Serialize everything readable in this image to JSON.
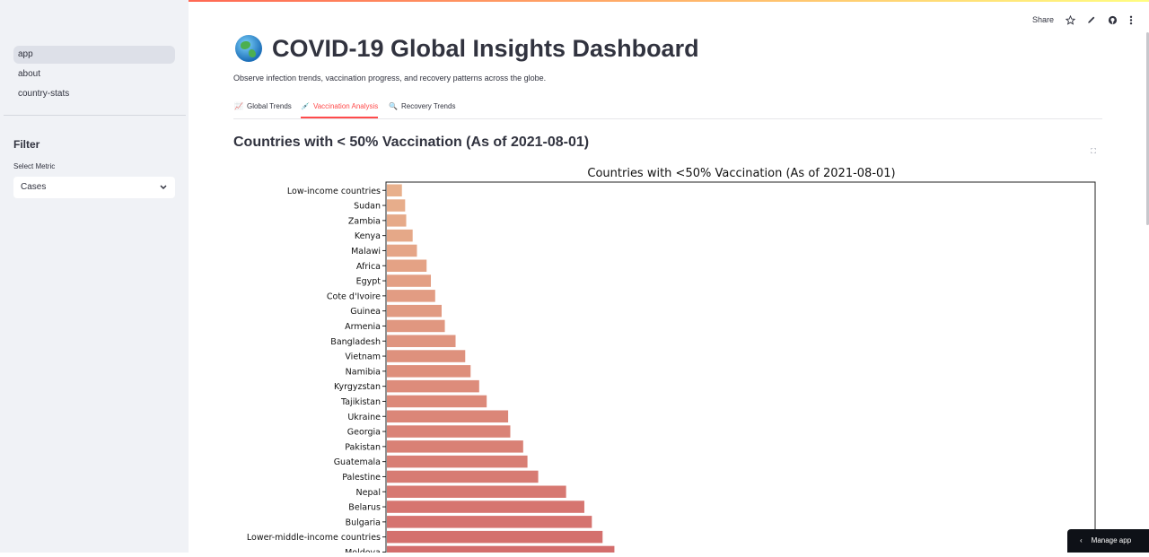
{
  "sidebar": {
    "nav": [
      {
        "label": "app",
        "active": true
      },
      {
        "label": "about",
        "active": false
      },
      {
        "label": "country-stats",
        "active": false
      }
    ],
    "filter_title": "Filter",
    "select_label": "Select Metric",
    "select_value": "Cases"
  },
  "toolbar": {
    "share_label": "Share"
  },
  "header": {
    "title": "COVID-19 Global Insights Dashboard",
    "subtitle": "Observe infection trends, vaccination progress, and recovery patterns across the globe."
  },
  "tabs": [
    {
      "label": "Global Trends",
      "icon": "📈",
      "active": false
    },
    {
      "label": "Vaccination Analysis",
      "icon": "💉",
      "active": true
    },
    {
      "label": "Recovery Trends",
      "icon": "🔍",
      "active": false
    }
  ],
  "section_title": "Countries with < 50% Vaccination (As of 2021-08-01)",
  "manage_label": "Manage app",
  "chart_data": {
    "type": "bar",
    "orientation": "horizontal",
    "title": "Countries with <50% Vaccination (As of 2021-08-01)",
    "categories": [
      "Low-income countries",
      "Sudan",
      "Zambia",
      "Kenya",
      "Malawi",
      "Africa",
      "Egypt",
      "Cote d'Ivoire",
      "Guinea",
      "Armenia",
      "Bangladesh",
      "Vietnam",
      "Namibia",
      "Kyrgyzstan",
      "Tajikistan",
      "Ukraine",
      "Georgia",
      "Pakistan",
      "Guatemala",
      "Palestine",
      "Nepal",
      "Belarus",
      "Bulgaria",
      "Lower-middle-income countries",
      "Moldova"
    ],
    "values": [
      1.4,
      1.7,
      1.8,
      2.4,
      2.8,
      3.7,
      4.1,
      4.5,
      5.1,
      5.4,
      6.4,
      7.3,
      7.8,
      8.6,
      9.3,
      11.3,
      11.5,
      12.7,
      13.1,
      14.1,
      16.7,
      18.4,
      19.1,
      20.1,
      21.2
    ],
    "xlim": [
      0,
      66
    ],
    "colors": {
      "start": "#e8b08c",
      "end": "#d36d6c"
    }
  }
}
